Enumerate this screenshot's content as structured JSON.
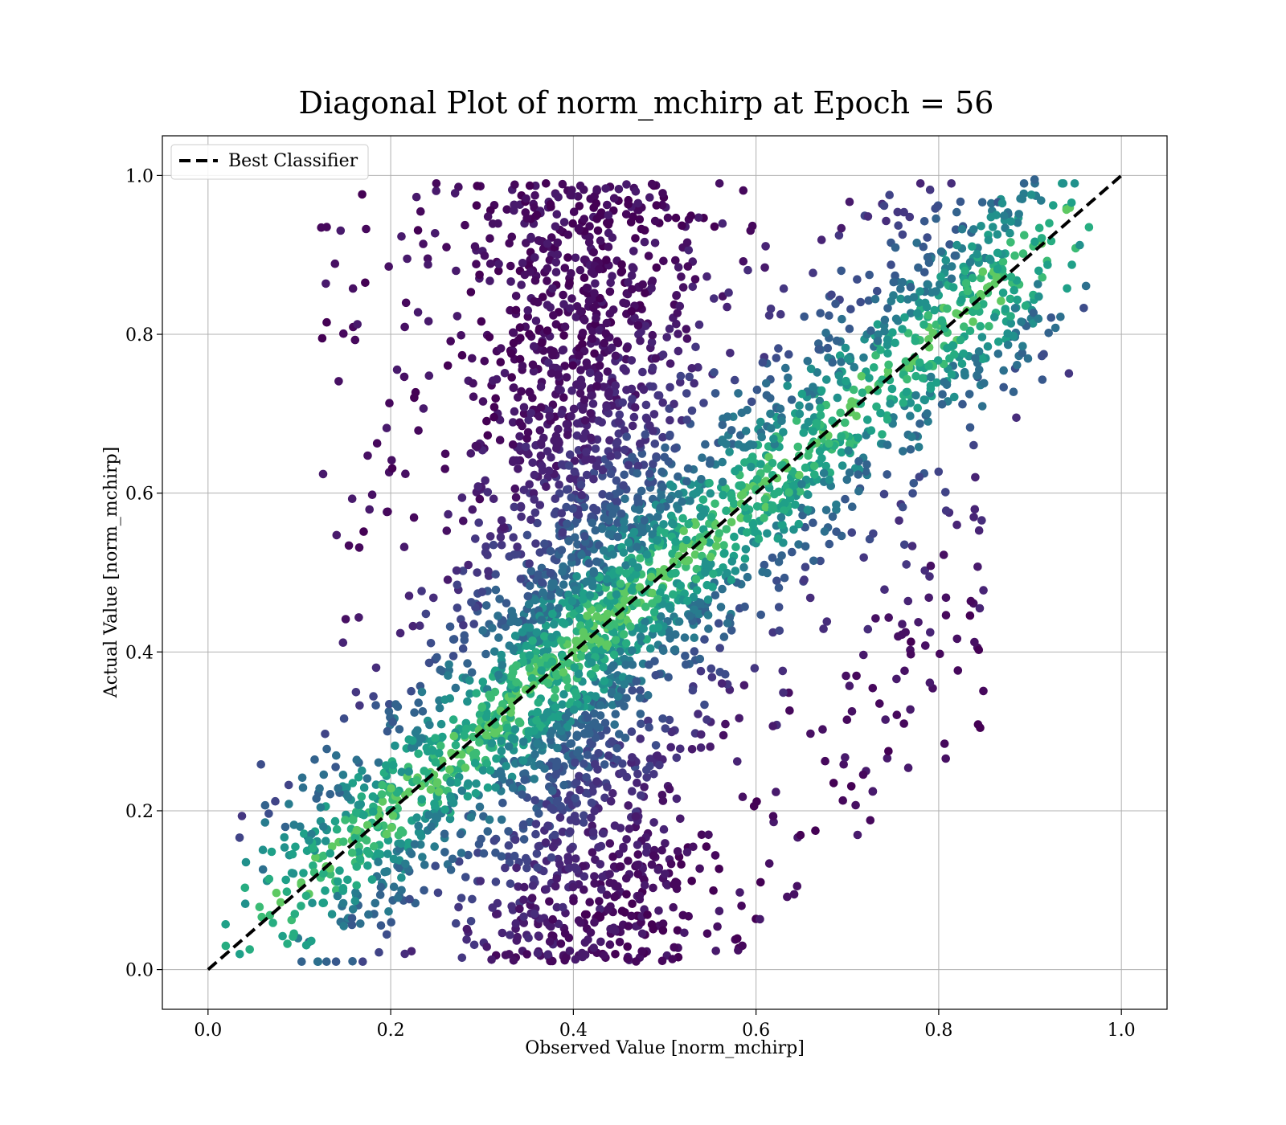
{
  "chart_data": {
    "type": "scatter",
    "title": "Diagonal Plot of norm_mchirp at Epoch = 56",
    "xlabel": "Observed Value [norm_mchirp]",
    "ylabel": "Actual Value [norm_mchirp]",
    "xlim": [
      -0.05,
      1.05
    ],
    "ylim": [
      -0.05,
      1.05
    ],
    "grid": true,
    "legend": {
      "placement": "upper-left",
      "entries": [
        "Best Classifier"
      ]
    },
    "xticks": [
      "0.0",
      "0.2",
      "0.4",
      "0.6",
      "0.8",
      "1.0"
    ],
    "yticks": [
      "0.0",
      "0.2",
      "0.4",
      "0.6",
      "0.8",
      "1.0"
    ],
    "colormap": "viridis",
    "reference_line": {
      "name": "Best Classifier",
      "x": [
        0.0,
        1.0
      ],
      "y": [
        0.0,
        1.0
      ],
      "style": "dashed",
      "color": "#000000"
    },
    "clusters": [
      {
        "name": "vertical band",
        "x_center": 0.41,
        "x_spread": 0.06,
        "y_range": [
          0.01,
          0.99
        ],
        "share": 0.42
      },
      {
        "name": "diagonal band",
        "x_center_offset": 0.0,
        "x_range": [
          0.09,
          0.92
        ],
        "spread": 0.05,
        "share": 0.46
      },
      {
        "name": "scattered",
        "x_range": [
          0.12,
          0.85
        ],
        "y_range": [
          0.01,
          0.99
        ],
        "share": 0.12
      }
    ],
    "sample_points": [
      [
        0.13,
        0.935
      ],
      [
        0.125,
        0.795
      ],
      [
        0.13,
        0.815
      ],
      [
        0.095,
        0.07
      ],
      [
        0.12,
        0.01
      ],
      [
        0.845,
        0.455
      ],
      [
        0.585,
        0.03
      ],
      [
        0.76,
        0.435
      ],
      [
        0.71,
        0.37
      ],
      [
        0.745,
        0.275
      ],
      [
        0.905,
        0.995
      ],
      [
        0.915,
        0.775
      ],
      [
        0.885,
        0.695
      ],
      [
        0.82,
        0.56
      ],
      [
        0.685,
        0.235
      ],
      [
        0.665,
        0.175
      ],
      [
        0.605,
        0.11
      ],
      [
        0.645,
        0.105
      ],
      [
        0.84,
        0.62
      ],
      [
        0.79,
        0.495
      ],
      [
        0.25,
        0.99
      ],
      [
        0.37,
        0.99
      ],
      [
        0.56,
        0.99
      ],
      [
        0.78,
        0.99
      ],
      [
        0.3,
        0.33
      ],
      [
        0.6,
        0.605
      ],
      [
        0.84,
        0.77
      ]
    ]
  }
}
